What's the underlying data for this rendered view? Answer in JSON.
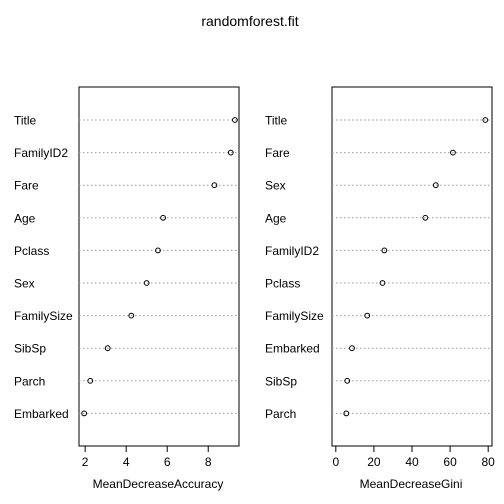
{
  "chart_data": {
    "type": "scatter",
    "title": "randomforest.fit",
    "panels": [
      {
        "name": "accuracy",
        "xlabel": "MeanDecreaseAccuracy",
        "xlim": [
          1.7,
          9.5
        ],
        "xticks": [
          2,
          4,
          6,
          8
        ],
        "categories": [
          "Title",
          "FamilyID2",
          "Fare",
          "Age",
          "Pclass",
          "Sex",
          "FamilySize",
          "SibSp",
          "Parch",
          "Embarked"
        ],
        "values": [
          9.3,
          9.1,
          8.3,
          5.8,
          5.55,
          5.0,
          4.25,
          3.1,
          2.25,
          1.95
        ]
      },
      {
        "name": "gini",
        "xlabel": "MeanDecreaseGini",
        "xlim": [
          -2,
          82
        ],
        "xticks": [
          0,
          20,
          40,
          60,
          80
        ],
        "categories": [
          "Title",
          "Fare",
          "Sex",
          "Age",
          "FamilyID2",
          "Pclass",
          "FamilySize",
          "Embarked",
          "SibSp",
          "Parch"
        ],
        "values": [
          78.5,
          61.5,
          52.5,
          47.0,
          25.5,
          24.5,
          16.5,
          8.5,
          6.0,
          5.5
        ]
      }
    ]
  }
}
